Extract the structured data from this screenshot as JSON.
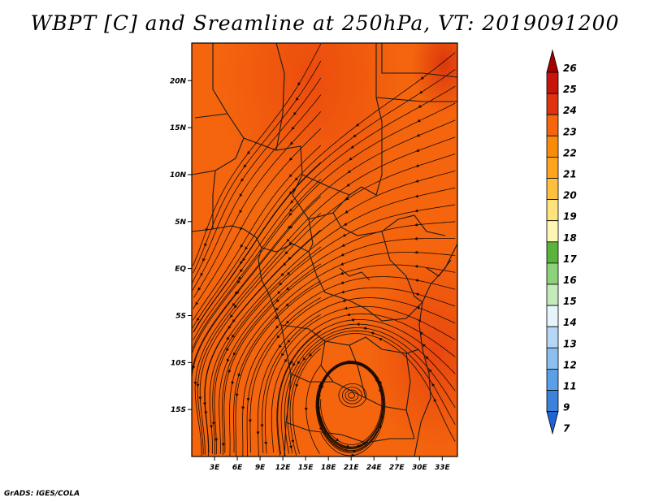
{
  "title": "WBPT [C] and Sreamline at 250hPa, VT: 2019091200",
  "footer": "GrADS: IGES/COLA",
  "map": {
    "lon_range": [
      0,
      35
    ],
    "lat_range": [
      -20,
      24
    ],
    "lon_ticks": [
      {
        "value": 3,
        "label": "3E"
      },
      {
        "value": 6,
        "label": "6E"
      },
      {
        "value": 9,
        "label": "9E"
      },
      {
        "value": 12,
        "label": "12E"
      },
      {
        "value": 15,
        "label": "15E"
      },
      {
        "value": 18,
        "label": "18E"
      },
      {
        "value": 21,
        "label": "21E"
      },
      {
        "value": 24,
        "label": "24E"
      },
      {
        "value": 27,
        "label": "27E"
      },
      {
        "value": 30,
        "label": "30E"
      },
      {
        "value": 33,
        "label": "33E"
      }
    ],
    "lat_ticks": [
      {
        "value": 20,
        "label": "20N"
      },
      {
        "value": 15,
        "label": "15N"
      },
      {
        "value": 10,
        "label": "10N"
      },
      {
        "value": 5,
        "label": "5N"
      },
      {
        "value": 0,
        "label": "EQ"
      },
      {
        "value": -5,
        "label": "5S"
      },
      {
        "value": -10,
        "label": "10S"
      },
      {
        "value": -15,
        "label": "15S"
      }
    ],
    "base_color": "#f4650e",
    "vortex_center": {
      "lon": 21,
      "lat": -13.5
    }
  },
  "colorbar": {
    "levels": [
      "26",
      "25",
      "24",
      "23",
      "22",
      "21",
      "20",
      "19",
      "18",
      "17",
      "16",
      "15",
      "14",
      "13",
      "12",
      "11",
      "9",
      "7"
    ],
    "colors": [
      "#a50000",
      "#c8140a",
      "#e1320f",
      "#f4650e",
      "#fa8a0a",
      "#fda31e",
      "#fdc03c",
      "#fee27a",
      "#fff5b4",
      "#5ab43c",
      "#8cd278",
      "#c3ebb9",
      "#e6f5fa",
      "#b4d7f5",
      "#8cbef0",
      "#5aa0e6",
      "#3c82dc",
      "#1e64d2"
    ]
  }
}
